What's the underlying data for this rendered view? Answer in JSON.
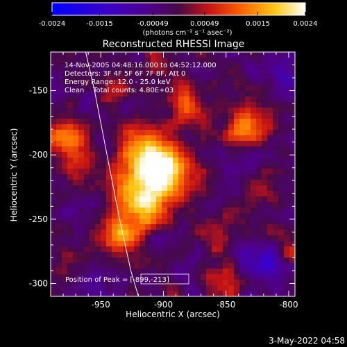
{
  "chart_data": {
    "type": "heatmap",
    "title": "Reconstructed RHESSI Image",
    "xlabel": "Heliocentric X (arcsec)",
    "ylabel": "Heliocentric Y (arcsec)",
    "xlim": [
      -990,
      -795
    ],
    "ylim": [
      -310,
      -120
    ],
    "xticks": [
      -950,
      -900,
      -850,
      -800
    ],
    "xtick_labels": [
      "-950",
      "-900",
      "-850",
      "-800"
    ],
    "yticks": [
      -150,
      -200,
      -250,
      -300
    ],
    "ytick_labels": [
      "-150",
      "-200",
      "-250",
      "-300"
    ],
    "colorbar": {
      "ticks": [
        -0.0024,
        -0.0015,
        -0.00049,
        0.00049,
        0.0015,
        0.0024
      ],
      "tick_labels": [
        "-0.0024",
        "-0.0015",
        "-0.00049",
        "0.00049",
        "0.0015",
        "0.0024"
      ],
      "units_label": "(photons cm⁻² s⁻¹ asec⁻²)",
      "range": [
        -0.0024,
        0.0024
      ]
    },
    "annotations": [
      "14-Nov-2005 04:48:16.000 to 04:52:12.000",
      "Detectors: 3F 4F 5F 6F 7F 8F, Att 0",
      "Energy Range: 12.0 - 25.0 keV",
      "Clean    Total counts: 4.80E+03"
    ],
    "peak_label": "Position of Peak = [-899,-213]",
    "peak": [
      -899,
      -213
    ],
    "limb_curve": [
      [
        -962,
        -120
      ],
      [
        -955,
        -150
      ],
      [
        -945,
        -200
      ],
      [
        -935,
        -250
      ],
      [
        -926,
        -290
      ],
      [
        -920,
        -310
      ]
    ],
    "sources": [
      {
        "x": -900,
        "y": -212,
        "amp": 0.0024,
        "sigma": 14
      },
      {
        "x": -918,
        "y": -196,
        "amp": 0.0017,
        "sigma": 13
      },
      {
        "x": -912,
        "y": -240,
        "amp": 0.0016,
        "sigma": 13
      },
      {
        "x": -935,
        "y": -262,
        "amp": 0.0016,
        "sigma": 11
      },
      {
        "x": -928,
        "y": -228,
        "amp": 0.0012,
        "sigma": 12
      },
      {
        "x": -978,
        "y": -188,
        "amp": 0.0015,
        "sigma": 11
      },
      {
        "x": -965,
        "y": -210,
        "amp": 0.0008,
        "sigma": 10
      },
      {
        "x": -832,
        "y": -178,
        "amp": 0.0015,
        "sigma": 12
      },
      {
        "x": -882,
        "y": -160,
        "amp": 0.0011,
        "sigma": 11
      },
      {
        "x": -905,
        "y": -128,
        "amp": 0.0007,
        "sigma": 9
      },
      {
        "x": -850,
        "y": -300,
        "amp": 0.0011,
        "sigma": 9
      },
      {
        "x": -800,
        "y": -272,
        "amp": 0.0007,
        "sigma": 9
      },
      {
        "x": -860,
        "y": -262,
        "amp": 0.0006,
        "sigma": 9
      },
      {
        "x": -825,
        "y": -228,
        "amp": 0.0007,
        "sigma": 10
      },
      {
        "x": -975,
        "y": -285,
        "amp": 0.0006,
        "sigma": 9
      },
      {
        "x": -940,
        "y": -150,
        "amp": 0.0006,
        "sigma": 9
      },
      {
        "x": -870,
        "y": -215,
        "amp": 0.0005,
        "sigma": 9
      },
      {
        "x": -820,
        "y": -285,
        "amp": -0.0013,
        "sigma": 10
      },
      {
        "x": -805,
        "y": -135,
        "amp": -0.0007,
        "sigma": 12
      },
      {
        "x": -840,
        "y": -210,
        "amp": -0.0005,
        "sigma": 10
      },
      {
        "x": -955,
        "y": -300,
        "amp": -0.0006,
        "sigma": 10
      }
    ],
    "background": -0.0002,
    "noise_amp": 0.00075
  },
  "footer_date": "3-May-2022 04:58"
}
